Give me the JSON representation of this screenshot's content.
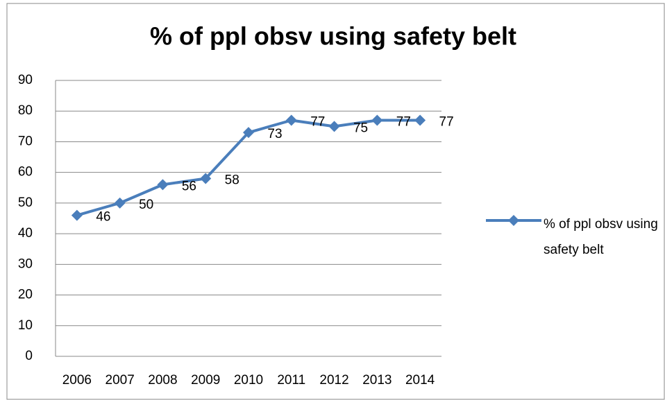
{
  "chart_data": {
    "type": "line",
    "title": "% of ppl obsv using safety belt",
    "categories": [
      "2006",
      "2007",
      "2008",
      "2009",
      "2010",
      "2011",
      "2012",
      "2013",
      "2014"
    ],
    "series": [
      {
        "name": "% of ppl obsv using safety belt",
        "color": "#4a7ebb",
        "values": [
          46,
          50,
          56,
          58,
          73,
          77,
          75,
          77,
          77
        ]
      }
    ],
    "ylim": [
      0,
      90
    ],
    "yticks": [
      0,
      10,
      20,
      30,
      40,
      50,
      60,
      70,
      80,
      90
    ],
    "grid": true,
    "legend": "right",
    "data_labels": true
  }
}
